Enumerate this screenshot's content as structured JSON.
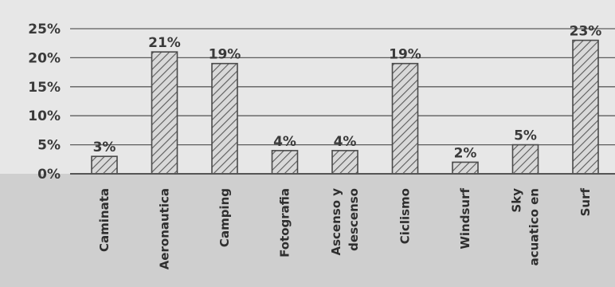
{
  "colors": {
    "background": "#cfcfcf",
    "plot_background": "#e7e7e7",
    "bar_fill": "#d9d9d9",
    "bar_stroke": "#4a4a4a",
    "hatch": "#5a5a5a",
    "grid": "#5c5c5c",
    "text": "#3a3a3a"
  },
  "chart_data": {
    "type": "bar",
    "categories": [
      "Caminata",
      "Aeronautica",
      "Camping",
      "Fotografia",
      "Ascenso y descenso",
      "Ciclismo",
      "Windsurf",
      "Sky acuatico en",
      "Surf"
    ],
    "category_lines": [
      [
        "Caminata"
      ],
      [
        "Aeronautica"
      ],
      [
        "Camping"
      ],
      [
        "Fotografia"
      ],
      [
        "Ascenso y",
        "descenso"
      ],
      [
        "Ciclismo"
      ],
      [
        "Windsurf"
      ],
      [
        "Sky",
        "acuatico en"
      ],
      [
        "Surf"
      ]
    ],
    "values": [
      3,
      21,
      19,
      4,
      4,
      19,
      2,
      5,
      23
    ],
    "data_labels": [
      "3%",
      "21%",
      "19%",
      "4%",
      "4%",
      "19%",
      "2%",
      "5%",
      "23%"
    ],
    "ylim": [
      0,
      25
    ],
    "yticks": [
      0,
      5,
      10,
      15,
      20,
      25
    ],
    "ytick_labels": [
      "0%",
      "5%",
      "10%",
      "15%",
      "20%",
      "25%"
    ],
    "grid": true,
    "bar_pattern": "diagonal-hatch",
    "legend": "none",
    "title": "",
    "xlabel": "",
    "ylabel": ""
  }
}
